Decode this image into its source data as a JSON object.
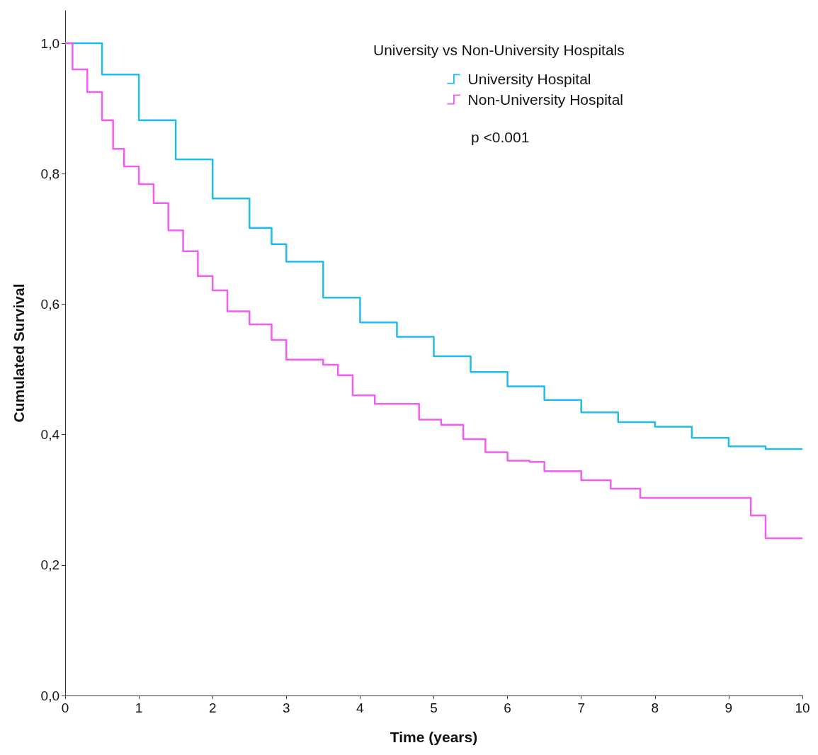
{
  "chart_data": {
    "type": "step",
    "legend_title": "University vs Non-University Hospitals",
    "xlabel": "Time (years)",
    "ylabel": "Cumulated Survival",
    "annotations": [
      "p <0.001"
    ],
    "xlim": [
      0,
      10
    ],
    "xticks": [
      0,
      1,
      2,
      3,
      4,
      5,
      6,
      7,
      8,
      9,
      10
    ],
    "ylim": [
      0,
      1.05
    ],
    "yticks": [
      {
        "value": 0,
        "label": "0,0"
      },
      {
        "value": 0.2,
        "label": "0,2"
      },
      {
        "value": 0.4,
        "label": "0,4"
      },
      {
        "value": 0.6,
        "label": "0,6"
      },
      {
        "value": 0.8,
        "label": "0,8"
      },
      {
        "value": 1,
        "label": "1,0"
      }
    ],
    "grid": false,
    "legend": "top right",
    "marker": "none",
    "line_style": "solid",
    "series": [
      {
        "name": "University Hospital",
        "color": "#1ebdf0",
        "x": [
          0,
          0.5,
          1,
          1.5,
          2,
          2.5,
          2.8,
          3,
          3.5,
          4,
          4.5,
          5,
          5.5,
          6,
          6.5,
          7,
          7.5,
          8,
          8.5,
          9,
          9.5,
          10
        ],
        "values": [
          1.0,
          0.952,
          0.882,
          0.822,
          0.762,
          0.717,
          0.692,
          0.665,
          0.61,
          0.572,
          0.55,
          0.52,
          0.496,
          0.474,
          0.453,
          0.434,
          0.419,
          0.412,
          0.395,
          0.382,
          0.378,
          0.378
        ]
      },
      {
        "name": "Non-University Hospital",
        "color": "#f25cf2",
        "x": [
          0,
          0.1,
          0.3,
          0.5,
          0.65,
          0.8,
          1.0,
          1.2,
          1.4,
          1.6,
          1.8,
          2.0,
          2.2,
          2.5,
          2.8,
          3.0,
          3.5,
          3.7,
          3.9,
          4.2,
          4.8,
          5.1,
          5.4,
          5.7,
          6.0,
          6.3,
          6.5,
          7.0,
          7.4,
          7.8,
          9.3,
          9.5,
          10
        ],
        "values": [
          1.0,
          0.96,
          0.925,
          0.882,
          0.838,
          0.811,
          0.784,
          0.755,
          0.713,
          0.681,
          0.643,
          0.621,
          0.589,
          0.569,
          0.545,
          0.515,
          0.507,
          0.491,
          0.46,
          0.447,
          0.423,
          0.415,
          0.393,
          0.373,
          0.36,
          0.358,
          0.344,
          0.33,
          0.317,
          0.303,
          0.276,
          0.241,
          0.241
        ]
      }
    ]
  }
}
